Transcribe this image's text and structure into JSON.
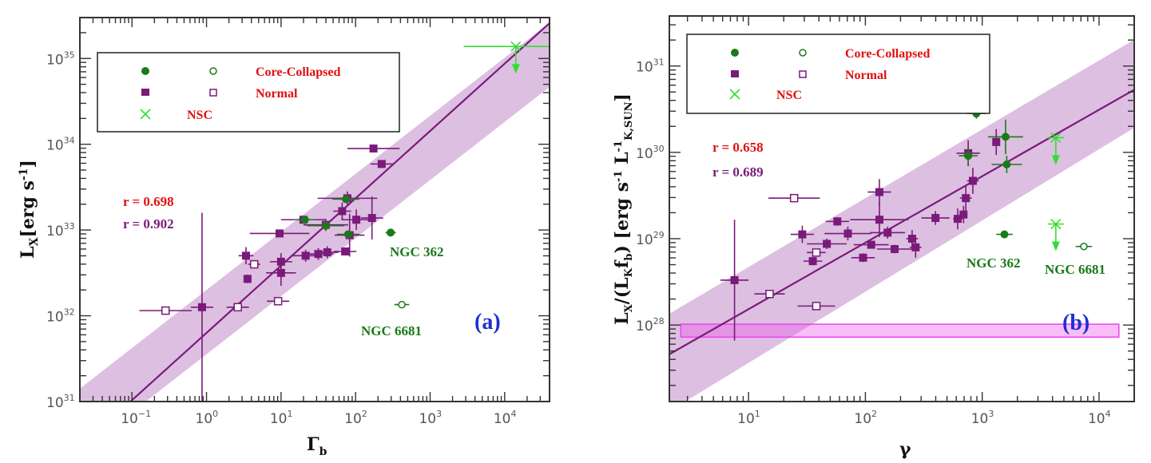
{
  "chart_data": [
    {
      "type": "scatter",
      "panel_label": "(a)",
      "xlabel": "Γ",
      "xlabel_sub": "b",
      "ylabel": "L",
      "ylabel_sub": "X",
      "ylabel_units": "[erg s",
      "ylabel_units_sup": "-1",
      "ylabel_units_end": "]",
      "xscale": "log",
      "yscale": "log",
      "xlim": [
        0.02,
        40000
      ],
      "ylim": [
        1e+31,
        3e+35
      ],
      "x_ticks": [
        {
          "exp": "-1",
          "value": 0.1
        },
        {
          "exp": "0",
          "value": 1
        },
        {
          "exp": "1",
          "value": 10
        },
        {
          "exp": "2",
          "value": 100
        },
        {
          "exp": "3",
          "value": 1000
        },
        {
          "exp": "4",
          "value": 10000
        }
      ],
      "y_ticks": [
        {
          "exp": "31",
          "value": 1e+31
        },
        {
          "exp": "32",
          "value": 1e+32
        },
        {
          "exp": "33",
          "value": 1e+33
        },
        {
          "exp": "34",
          "value": 1e+34
        },
        {
          "exp": "35",
          "value": 1e+35
        }
      ],
      "legend": {
        "placement": "top-left",
        "entries": [
          {
            "label": "Core-Collapsed",
            "symbols": [
              "filled-circle",
              "open-circle"
            ],
            "color": "#1a7a1a"
          },
          {
            "label": "Normal",
            "symbols": [
              "filled-square",
              "open-square"
            ],
            "color": "#7a1a7a"
          },
          {
            "label": "NSC",
            "symbols": [
              "cross"
            ],
            "color": "#33dd33"
          }
        ],
        "text_color": "#e01010"
      },
      "correlations": [
        {
          "text": "r = 0.698",
          "color": "#e01010"
        },
        {
          "text": "r = 0.902",
          "color": "#7a1a7a"
        }
      ],
      "fit": {
        "log_x": [
          -1.02,
          4.65
        ],
        "log_y": [
          31.0,
          35.45
        ],
        "color": "#7a1a7a"
      },
      "band": {
        "log_x": [
          -1.7,
          4.65
        ],
        "upper": [
          31.15,
          35.45
        ],
        "lower": [
          30.4,
          34.7
        ],
        "color": "#d7b4dc"
      },
      "annotations": [
        {
          "text": "NGC 362",
          "log_x": 2.55,
          "log_y": 32.72,
          "color": "#1a7a1a"
        },
        {
          "text": "NGC 6681",
          "log_x": 2.3,
          "log_y": 31.85,
          "color": "#1a7a1a"
        }
      ],
      "series": [
        {
          "name": "Normal (filled)",
          "marker": "filled-square",
          "color": "#7a1a7a",
          "points": [
            {
              "log_x": 2.24,
              "log_y": 33.95,
              "xerr": 0.35,
              "yerr": 0.0
            },
            {
              "log_x": 2.35,
              "log_y": 33.77,
              "xerr": 0.15,
              "yerr": 0.0
            },
            {
              "log_x": 1.89,
              "log_y": 33.37,
              "xerr": 0.4,
              "yerr": 0.08
            },
            {
              "log_x": 1.82,
              "log_y": 33.22,
              "xerr": 0.12,
              "yerr": 0.1
            },
            {
              "log_x": 2.01,
              "log_y": 33.12,
              "xerr": 0.2,
              "yerr": 0.12
            },
            {
              "log_x": 2.22,
              "log_y": 33.14,
              "xerr": 0.15,
              "yerr": 0.25
            },
            {
              "log_x": 1.92,
              "log_y": 32.94,
              "xerr": 0.2,
              "yerr": 0.25
            },
            {
              "log_x": 1.6,
              "log_y": 33.06,
              "xerr": 0.3,
              "yerr": 0.07
            },
            {
              "log_x": 1.3,
              "log_y": 33.12,
              "xerr": 0.3,
              "yerr": 0.03
            },
            {
              "log_x": 0.98,
              "log_y": 32.96,
              "xerr": 0.4,
              "yerr": 0.03
            },
            {
              "log_x": 1.5,
              "log_y": 32.72,
              "xerr": 0.2,
              "yerr": 0.07
            },
            {
              "log_x": 1.62,
              "log_y": 32.74,
              "xerr": 0.15,
              "yerr": 0.07
            },
            {
              "log_x": 1.33,
              "log_y": 32.7,
              "xerr": 0.2,
              "yerr": 0.07
            },
            {
              "log_x": 1.86,
              "log_y": 32.75,
              "xerr": 0.15,
              "yerr": 0.02
            },
            {
              "log_x": 0.53,
              "log_y": 32.7,
              "xerr": 0.1,
              "yerr": 0.1
            },
            {
              "log_x": 0.55,
              "log_y": 32.43,
              "xerr": 0.03,
              "yerr": 0.05
            },
            {
              "log_x": 1.0,
              "log_y": 32.63,
              "xerr": 0.15,
              "yerr": 0.1
            },
            {
              "log_x": 1.0,
              "log_y": 32.5,
              "xerr": 0.2,
              "yerr": 0.15
            },
            {
              "log_x": -0.06,
              "log_y": 32.1,
              "xerr": 0.15,
              "yerr": 1.1
            }
          ]
        },
        {
          "name": "Normal (open)",
          "marker": "open-square",
          "color": "#7a1a7a",
          "points": [
            {
              "log_x": 0.64,
              "log_y": 32.6,
              "xerr": 0.08,
              "yerr": 0.0
            },
            {
              "log_x": -0.55,
              "log_y": 32.06,
              "xerr": 0.35,
              "yerr": 0.0
            },
            {
              "log_x": 0.42,
              "log_y": 32.1,
              "xerr": 0.15,
              "yerr": 0.0
            },
            {
              "log_x": 0.96,
              "log_y": 32.17,
              "xerr": 0.15,
              "yerr": 0.0
            }
          ]
        },
        {
          "name": "Core-Collapsed (filled)",
          "marker": "filled-circle",
          "color": "#1a7a1a",
          "points": [
            {
              "log_x": 1.32,
              "log_y": 33.12,
              "xerr": 0.15,
              "yerr": 0.0
            },
            {
              "log_x": 1.87,
              "log_y": 33.36,
              "xerr": 0.18,
              "yerr": 0.0
            },
            {
              "log_x": 1.6,
              "log_y": 33.05,
              "xerr": 0.25,
              "yerr": 0.0
            },
            {
              "log_x": 1.9,
              "log_y": 32.95,
              "xerr": 0.15,
              "yerr": 0.0
            },
            {
              "log_x": 2.47,
              "log_y": 32.97,
              "xerr": 0.07,
              "yerr": 0.0
            }
          ]
        },
        {
          "name": "Core-Collapsed (open)",
          "marker": "open-circle",
          "color": "#1a7a1a",
          "points": [
            {
              "log_x": 2.62,
              "log_y": 32.13,
              "xerr": 0.1,
              "yerr": 0.0
            }
          ]
        },
        {
          "name": "NSC",
          "marker": "cross",
          "color": "#33dd33",
          "upper_limit": true,
          "points": [
            {
              "log_x": 4.15,
              "log_y": 35.14,
              "xerr": 0.7,
              "yerr": 0.0
            }
          ]
        }
      ]
    },
    {
      "type": "scatter",
      "panel_label": "(b)",
      "xlabel": "γ",
      "ylabel": "L",
      "ylabel_sub": "X",
      "ylabel_mid": "/(L",
      "ylabel_mid_sub": "K",
      "ylabel_mid2": "f",
      "ylabel_mid2_sub": "b",
      "ylabel_units": ") [erg s",
      "ylabel_units_sup": "-1",
      "ylabel_units_L": " L",
      "ylabel_units_L_sup": "-1",
      "ylabel_units_L_sub": "K,SUN",
      "ylabel_units_end": "]",
      "xscale": "log",
      "yscale": "log",
      "xlim": [
        2.1,
        20000
      ],
      "ylim": [
        1.3e+27,
        3.8e+31
      ],
      "x_ticks": [
        {
          "exp": "1",
          "value": 10
        },
        {
          "exp": "2",
          "value": 100
        },
        {
          "exp": "3",
          "value": 1000
        },
        {
          "exp": "4",
          "value": 10000
        }
      ],
      "y_ticks": [
        {
          "exp": "28",
          "value": 1e+28
        },
        {
          "exp": "29",
          "value": 1e+29
        },
        {
          "exp": "30",
          "value": 1e+30
        },
        {
          "exp": "31",
          "value": 1e+31
        }
      ],
      "legend": {
        "placement": "top-left",
        "entries": [
          {
            "label": "Core-Collapsed",
            "symbols": [
              "filled-circle",
              "open-circle"
            ],
            "color": "#1a7a1a"
          },
          {
            "label": "Normal",
            "symbols": [
              "filled-square",
              "open-square"
            ],
            "color": "#7a1a7a"
          },
          {
            "label": "NSC",
            "symbols": [
              "cross"
            ],
            "color": "#33dd33"
          }
        ],
        "text_color": "#e01010"
      },
      "correlations": [
        {
          "text": "r = 0.658",
          "color": "#e01010"
        },
        {
          "text": "r = 0.689",
          "color": "#7a1a7a"
        }
      ],
      "fit": {
        "log_x": [
          0.32,
          4.32
        ],
        "log_y": [
          27.66,
          30.74
        ],
        "color": "#7a1a7a"
      },
      "band": {
        "log_x": [
          0.32,
          4.32
        ],
        "upper": [
          28.13,
          31.32
        ],
        "lower": [
          27.0,
          30.3
        ],
        "color": "#d7b4dc"
      },
      "reference_band": {
        "log_x": [
          0.42,
          4.17
        ],
        "log_y": [
          27.86,
          28.01
        ],
        "color": "#ee44ee"
      },
      "annotations": [
        {
          "text": "NGC 362",
          "log_x": 3.0,
          "log_y": 28.93,
          "color": "#1a7a1a"
        },
        {
          "text": "NGC 6681",
          "log_x": 3.63,
          "log_y": 28.78,
          "color": "#1a7a1a"
        }
      ],
      "series": [
        {
          "name": "Normal (filled)",
          "marker": "filled-square",
          "color": "#7a1a7a",
          "points": [
            {
              "log_x": 0.88,
              "log_y": 28.52,
              "xerr": 0.12,
              "yerr": 0.7
            },
            {
              "log_x": 1.46,
              "log_y": 29.05,
              "xerr": 0.1,
              "yerr": 0.1
            },
            {
              "log_x": 1.76,
              "log_y": 29.2,
              "xerr": 0.1,
              "yerr": 0.05
            },
            {
              "log_x": 1.85,
              "log_y": 29.06,
              "xerr": 0.2,
              "yerr": 0.08
            },
            {
              "log_x": 1.67,
              "log_y": 28.94,
              "xerr": 0.17,
              "yerr": 0.06
            },
            {
              "log_x": 1.55,
              "log_y": 28.74,
              "xerr": 0.08,
              "yerr": 0.05
            },
            {
              "log_x": 2.12,
              "log_y": 29.54,
              "xerr": 0.1,
              "yerr": 0.15
            },
            {
              "log_x": 2.12,
              "log_y": 29.22,
              "xerr": 0.25,
              "yerr": 0.2
            },
            {
              "log_x": 2.19,
              "log_y": 29.07,
              "xerr": 0.15,
              "yerr": 0.07
            },
            {
              "log_x": 2.25,
              "log_y": 28.88,
              "xerr": 0.15,
              "yerr": 0.05
            },
            {
              "log_x": 2.4,
              "log_y": 29.0,
              "xerr": 0.05,
              "yerr": 0.1
            },
            {
              "log_x": 2.43,
              "log_y": 28.9,
              "xerr": 0.05,
              "yerr": 0.12
            },
            {
              "log_x": 2.05,
              "log_y": 28.93,
              "xerr": 0.15,
              "yerr": 0.03
            },
            {
              "log_x": 1.98,
              "log_y": 28.78,
              "xerr": 0.1,
              "yerr": 0.05
            },
            {
              "log_x": 2.6,
              "log_y": 29.24,
              "xerr": 0.12,
              "yerr": 0.08
            },
            {
              "log_x": 2.79,
              "log_y": 29.23,
              "xerr": 0.04,
              "yerr": 0.12
            },
            {
              "log_x": 2.84,
              "log_y": 29.28,
              "xerr": 0.03,
              "yerr": 0.1
            },
            {
              "log_x": 2.86,
              "log_y": 29.47,
              "xerr": 0.05,
              "yerr": 0.15
            },
            {
              "log_x": 2.92,
              "log_y": 29.67,
              "xerr": 0.05,
              "yerr": 0.15
            },
            {
              "log_x": 2.88,
              "log_y": 29.99,
              "xerr": 0.1,
              "yerr": 0.15
            },
            {
              "log_x": 3.12,
              "log_y": 30.12,
              "xerr": 0.03,
              "yerr": 0.15
            }
          ]
        },
        {
          "name": "Normal (open)",
          "marker": "open-square",
          "color": "#7a1a7a",
          "points": [
            {
              "log_x": 1.39,
              "log_y": 29.47,
              "xerr": 0.22,
              "yerr": 0.0
            },
            {
              "log_x": 1.58,
              "log_y": 28.84,
              "xerr": 0.08,
              "yerr": 0.0
            },
            {
              "log_x": 1.18,
              "log_y": 28.36,
              "xerr": 0.13,
              "yerr": 0.0
            },
            {
              "log_x": 1.58,
              "log_y": 28.22,
              "xerr": 0.16,
              "yerr": 0.0
            }
          ]
        },
        {
          "name": "Core-Collapsed (filled)",
          "marker": "filled-circle",
          "color": "#1a7a1a",
          "points": [
            {
              "log_x": 2.88,
              "log_y": 29.96,
              "xerr": 0.08,
              "yerr": 0.1
            },
            {
              "log_x": 3.21,
              "log_y": 29.86,
              "xerr": 0.13,
              "yerr": 0.1
            },
            {
              "log_x": 3.2,
              "log_y": 30.18,
              "xerr": 0.15,
              "yerr": 0.2
            },
            {
              "log_x": 2.95,
              "log_y": 30.45,
              "xerr": 0.08,
              "yerr": 0.06
            },
            {
              "log_x": 3.19,
              "log_y": 29.05,
              "xerr": 0.07,
              "yerr": 0.0
            }
          ]
        },
        {
          "name": "Core-Collapsed (open)",
          "marker": "open-circle",
          "color": "#1a7a1a",
          "points": [
            {
              "log_x": 3.87,
              "log_y": 28.91,
              "xerr": 0.07,
              "yerr": 0.0
            }
          ]
        },
        {
          "name": "NSC",
          "marker": "cross",
          "color": "#33dd33",
          "upper_limit": true,
          "points": [
            {
              "log_x": 3.63,
              "log_y": 30.17,
              "xerr": 0.07,
              "yerr": 0.0
            },
            {
              "log_x": 3.63,
              "log_y": 29.17,
              "xerr": 0.07,
              "yerr": 0.0
            }
          ]
        }
      ]
    }
  ]
}
